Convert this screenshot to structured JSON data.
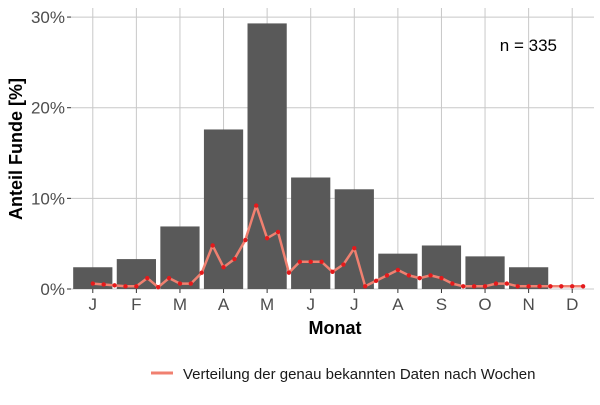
{
  "chart_data": {
    "type": "bar",
    "xlabel": "Monat",
    "ylabel": "Anteil Funde [%]",
    "annotation": "n = 335",
    "categories": [
      "J",
      "F",
      "M",
      "A",
      "M",
      "J",
      "J",
      "A",
      "S",
      "O",
      "N",
      "D"
    ],
    "values": [
      2.4,
      3.3,
      6.9,
      17.6,
      29.3,
      12.3,
      11.0,
      3.9,
      4.8,
      3.6,
      2.4,
      0.0
    ],
    "ylim": [
      0,
      31
    ],
    "yticks": [
      0,
      10,
      20,
      30
    ],
    "ytick_labels": [
      "0%",
      "10%",
      "20%",
      "30%"
    ],
    "grid": true,
    "legend_position": "bottom",
    "series": [
      {
        "name": "Verteilung der genau bekannten Daten nach Wochen",
        "x": [
          1.0,
          1.25,
          1.5,
          1.75,
          2.0,
          2.25,
          2.5,
          2.75,
          3.0,
          3.25,
          3.5,
          3.75,
          4.0,
          4.25,
          4.5,
          4.75,
          5.0,
          5.25,
          5.5,
          5.75,
          6.0,
          6.25,
          6.5,
          6.75,
          7.0,
          7.25,
          7.5,
          7.75,
          8.0,
          8.25,
          8.5,
          8.75,
          9.0,
          9.25,
          9.5,
          9.75,
          10.0,
          10.25,
          10.5,
          10.75,
          11.0,
          11.25,
          11.5,
          11.75,
          12.0,
          12.25
        ],
        "values": [
          0.6,
          0.5,
          0.4,
          0.3,
          0.3,
          1.2,
          0.2,
          1.2,
          0.6,
          0.6,
          1.8,
          4.8,
          2.4,
          3.3,
          5.4,
          9.2,
          5.6,
          6.3,
          1.8,
          3.0,
          3.0,
          3.0,
          1.9,
          2.7,
          4.5,
          0.3,
          0.9,
          1.5,
          2.1,
          1.5,
          1.2,
          1.5,
          1.2,
          0.6,
          0.3,
          0.3,
          0.3,
          0.6,
          0.6,
          0.3,
          0.3,
          0.3,
          0.3,
          0.3,
          0.3,
          0.3
        ],
        "color": "#F08070"
      }
    ],
    "colors": {
      "bar": "#595959",
      "line": "#F08070",
      "point": "#E41A1C",
      "grid": "#C8C8C8"
    }
  }
}
